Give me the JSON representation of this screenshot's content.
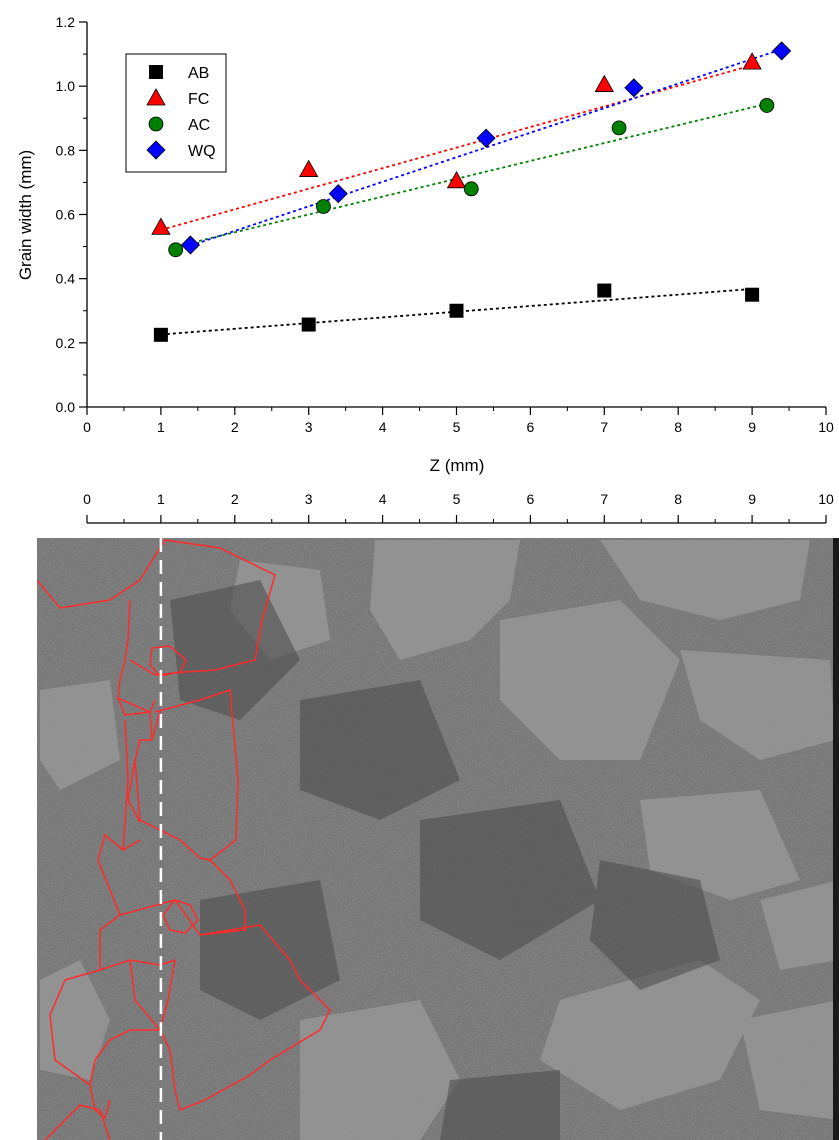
{
  "chart_data": [
    {
      "type": "scatter",
      "title": "",
      "xlabel": "Z (mm)",
      "ylabel": "Grain width (mm)",
      "xlim": [
        0,
        10
      ],
      "ylim": [
        0.0,
        1.2
      ],
      "xticks": [
        "0",
        "1",
        "2",
        "3",
        "4",
        "5",
        "6",
        "7",
        "8",
        "9",
        "10"
      ],
      "yticks": [
        "0.0",
        "0.2",
        "0.4",
        "0.6",
        "0.8",
        "1.0",
        "1.2"
      ],
      "grid": false,
      "legend_position": "top-left",
      "series": [
        {
          "name": "AB",
          "marker": "square",
          "color": "#000000",
          "trend_color": "#000000",
          "x": [
            1,
            3,
            5,
            7,
            9
          ],
          "y": [
            0.225,
            0.257,
            0.3,
            0.363,
            0.35
          ],
          "trend": {
            "x": [
              1,
              9
            ],
            "y": [
              0.226,
              0.368
            ]
          }
        },
        {
          "name": "FC",
          "marker": "triangle",
          "color": "#ff0000",
          "trend_color": "#ff0000",
          "x": [
            1,
            3,
            5,
            7,
            9
          ],
          "y": [
            0.56,
            0.74,
            0.705,
            1.005,
            1.075
          ],
          "trend": {
            "x": [
              1,
              9
            ],
            "y": [
              0.552,
              1.065
            ]
          }
        },
        {
          "name": "AC",
          "marker": "circle",
          "color": "#008000",
          "trend_color": "#008000",
          "x": [
            1.2,
            3.2,
            5.2,
            7.2,
            9.2
          ],
          "y": [
            0.49,
            0.625,
            0.68,
            0.87,
            0.94
          ],
          "trend": {
            "x": [
              1.2,
              9.2
            ],
            "y": [
              0.5,
              0.945
            ]
          }
        },
        {
          "name": "WQ",
          "marker": "diamond",
          "color": "#0000ff",
          "trend_color": "#0000ff",
          "x": [
            1.4,
            3.4,
            5.4,
            7.4,
            9.4
          ],
          "y": [
            0.505,
            0.665,
            0.838,
            0.995,
            1.11
          ],
          "trend": {
            "x": [
              1.4,
              9.4
            ],
            "y": [
              0.503,
              1.115
            ]
          }
        }
      ]
    },
    {
      "type": "scale-bar",
      "xlim": [
        0,
        10
      ],
      "xticks": [
        "0",
        "1",
        "2",
        "3",
        "4",
        "5",
        "6",
        "7",
        "8",
        "9",
        "10"
      ],
      "marker_line_x": 1
    }
  ]
}
